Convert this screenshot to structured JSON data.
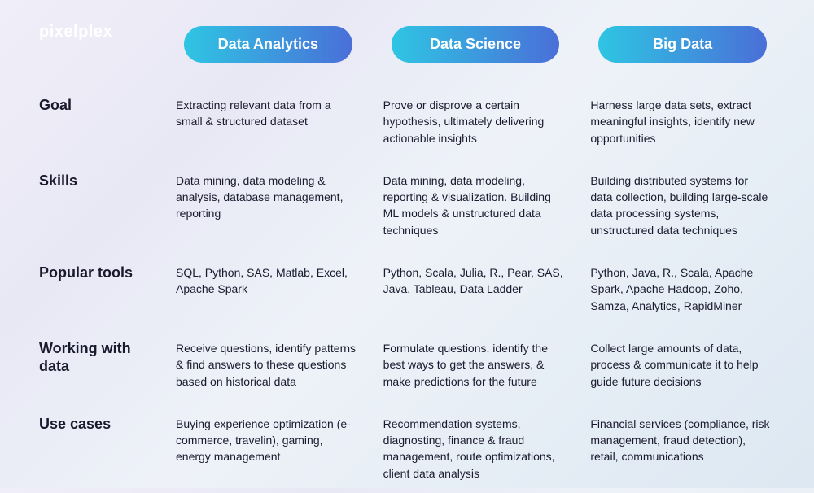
{
  "logo": "pixelplex",
  "columns": [
    {
      "label": "Data Analytics",
      "gradient": "linear-gradient(90deg, #2ec5e3 0%, #4a6fd8 100%)"
    },
    {
      "label": "Data Science",
      "gradient": "linear-gradient(90deg, #2ec5e3 0%, #4a6fd8 100%)"
    },
    {
      "label": "Big Data",
      "gradient": "linear-gradient(90deg, #2ec5e3 0%, #4a6fd8 100%)"
    }
  ],
  "rows": [
    {
      "label": "Goal",
      "cells": [
        "Extracting relevant data from a small & structured dataset",
        "Prove or disprove a certain hypothesis, ultimately delivering actionable insights",
        "Harness large data sets, extract meaningful insights, identify new opportunities"
      ]
    },
    {
      "label": "Skills",
      "cells": [
        "Data mining, data modeling & analysis, database management, reporting",
        "Data mining, data modeling, reporting & visualization. Building ML models & unstructured data techniques",
        "Building distributed systems for data collection, building large-scale data processing systems, unstructured data techniques"
      ]
    },
    {
      "label": "Popular tools",
      "cells": [
        "SQL, Python, SAS, Matlab, Excel, Apache Spark",
        "Python, Scala, Julia, R., Pear, SAS, Java, Tableau, Data Ladder",
        "Python, Java, R., Scala, Apache Spark, Apache Hadoop, Zoho, Samza, Analytics, RapidMiner"
      ]
    },
    {
      "label": "Working with data",
      "cells": [
        "Receive questions, identify patterns & find answers to these questions based on historical data",
        "Formulate questions, identify the best ways to get the answers, & make predictions for the future",
        "Collect large amounts of data, process & communicate it to help guide future decisions"
      ]
    },
    {
      "label": "Use cases",
      "cells": [
        "Buying experience optimization (e-commerce, travelin), gaming, energy management",
        "Recommendation systems, diagnosting, finance & fraud management, route optimizations, client data analysis",
        "Financial services (compliance, risk management, fraud detection), retail, communications"
      ]
    }
  ],
  "style": {
    "text_color": "#1a1a2e",
    "pill_text_color": "#ffffff",
    "row_label_fontsize": 18,
    "cell_fontsize": 14,
    "pill_fontsize": 18
  }
}
